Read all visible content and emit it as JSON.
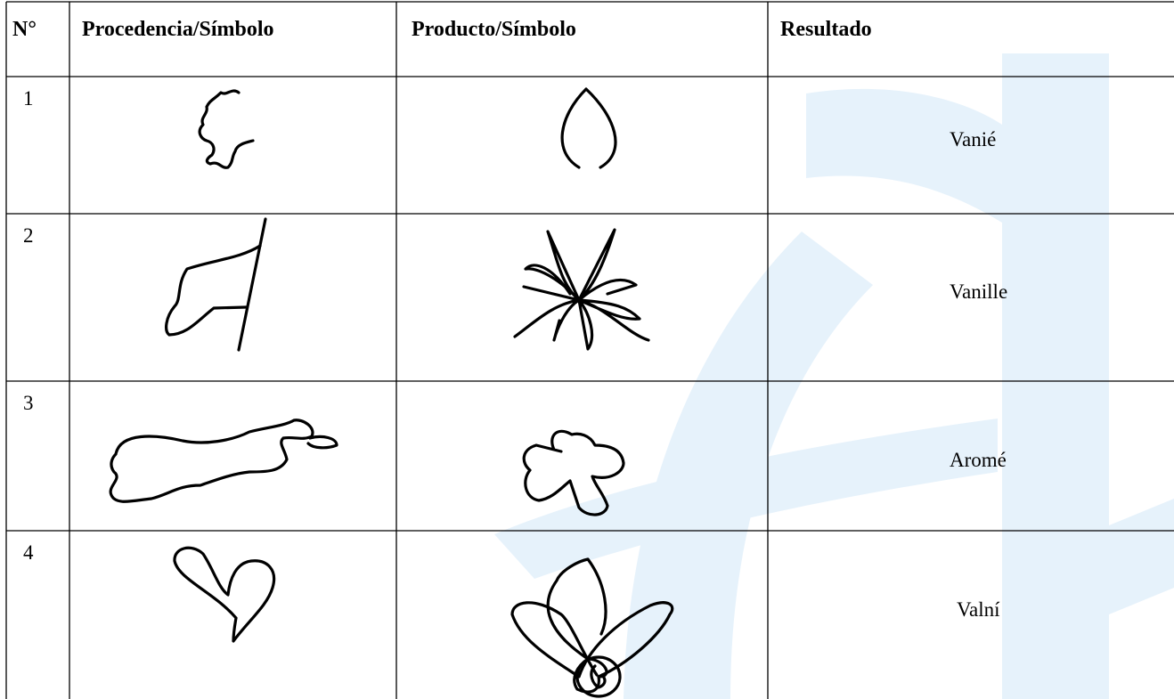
{
  "table": {
    "header": [
      "N°",
      "Procedencia/Símbolo",
      "Producto/Símbolo",
      "Resultado"
    ],
    "rows": [
      [
        "1",
        "Vanié"
      ],
      [
        "2",
        "Vanille"
      ],
      [
        "3",
        "Aromé"
      ],
      [
        "4",
        "Valní"
      ]
    ]
  }
}
